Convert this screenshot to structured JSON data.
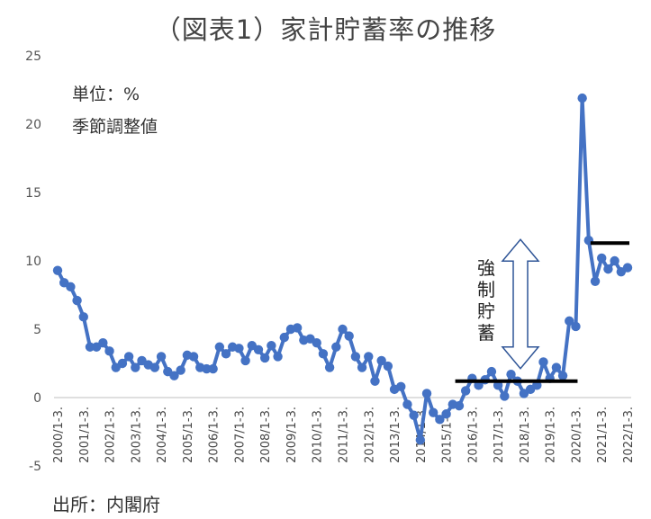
{
  "chart_data": {
    "type": "line",
    "title": "（図表1）家計貯蓄率の推移",
    "unit_note": "単位：%",
    "adjust_note": "季節調整値",
    "source": "出所：内閣府",
    "ylim": [
      -5,
      25
    ],
    "yticks": [
      25,
      20,
      15,
      10,
      5,
      0,
      -5
    ],
    "year_labels": [
      "2000/1-3.",
      "2001/1-3.",
      "2002/1-3.",
      "2003/1-3.",
      "2004/1-3.",
      "2005/1-3.",
      "2006/1-3.",
      "2007/1-3.",
      "2008/1-3.",
      "2009/1-3.",
      "2010/1-3.",
      "2011/1-3.",
      "2012/1-3.",
      "2013/1-3.",
      "2014/1-3.",
      "2015/1-3.",
      "2016/1-3.",
      "2017/1-3.",
      "2018/1-3.",
      "2019/1-3.",
      "2020/1-3.",
      "2021/1-3.",
      "2022/1-3."
    ],
    "series": [
      {
        "color": "#4472C4",
        "values": [
          9.3,
          8.4,
          8.1,
          7.1,
          5.9,
          3.7,
          3.7,
          4.0,
          3.4,
          2.2,
          2.5,
          3.0,
          2.2,
          2.7,
          2.4,
          2.2,
          3.0,
          1.9,
          1.6,
          2.0,
          3.1,
          3.0,
          2.2,
          2.1,
          2.1,
          3.7,
          3.2,
          3.7,
          3.6,
          2.7,
          3.8,
          3.5,
          2.9,
          3.8,
          3.0,
          4.4,
          5.0,
          5.1,
          4.2,
          4.3,
          4.0,
          3.2,
          2.2,
          3.7,
          5.0,
          4.5,
          3.0,
          2.2,
          3.0,
          1.2,
          2.7,
          2.3,
          0.6,
          0.8,
          -0.5,
          -1.3,
          -3.1,
          0.3,
          -1.1,
          -1.6,
          -1.2,
          -0.5,
          -0.6,
          0.5,
          1.4,
          0.9,
          1.3,
          1.9,
          0.9,
          0.1,
          1.7,
          1.2,
          0.3,
          0.6,
          0.9,
          2.6,
          1.4,
          2.2,
          1.6,
          5.6,
          5.2,
          21.9,
          11.5,
          8.5,
          10.2,
          9.4,
          10.0,
          9.2,
          9.5
        ]
      }
    ],
    "annotation": {
      "text": "強制貯蓄",
      "baseline_level": 1.2,
      "elevated_level": 11.3
    }
  }
}
